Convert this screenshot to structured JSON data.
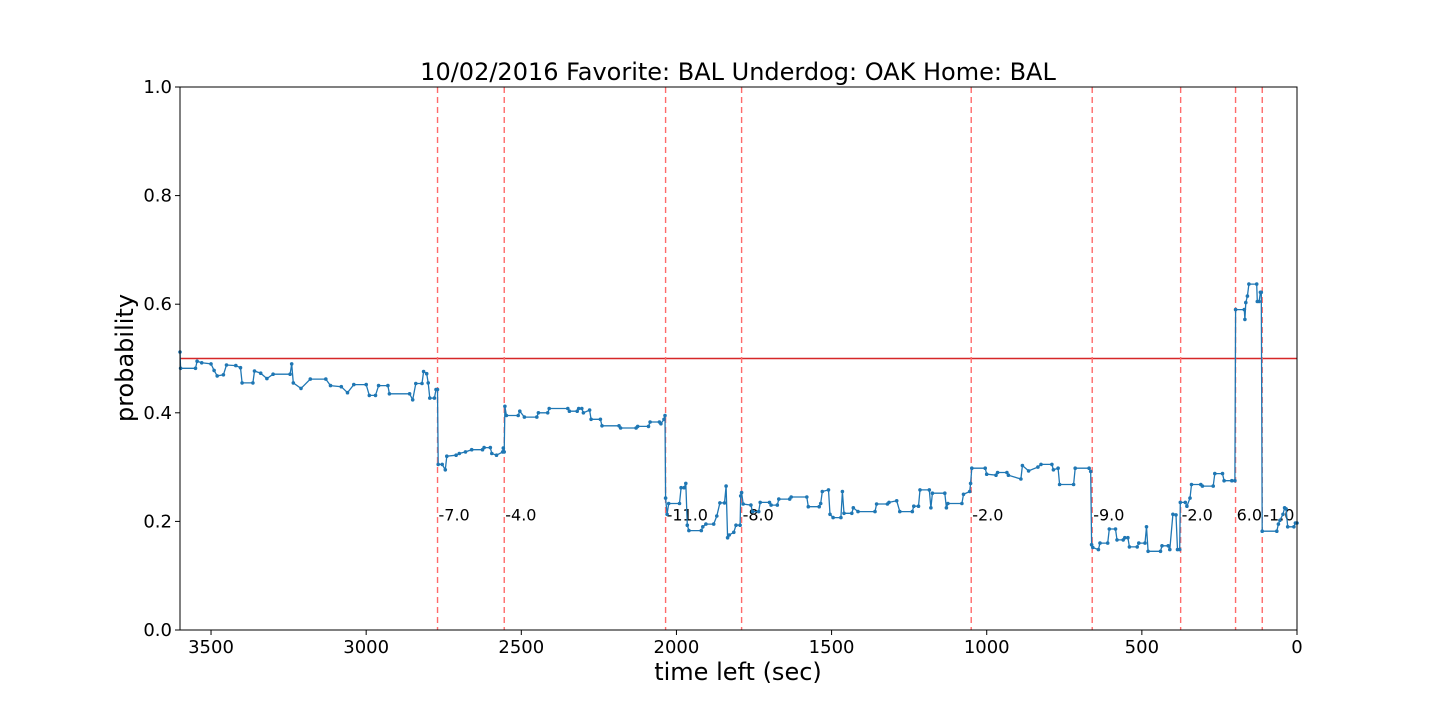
{
  "chart_data": {
    "type": "line",
    "title": "10/02/2016 Favorite: BAL Underdog: OAK Home: BAL",
    "xlabel": "time left (sec)",
    "ylabel": "probability",
    "xlim": [
      3600,
      0
    ],
    "ylim": [
      0.0,
      1.0
    ],
    "x_ticks": [
      3500,
      3000,
      2500,
      2000,
      1500,
      1000,
      500,
      0
    ],
    "y_ticks": [
      0.0,
      0.2,
      0.4,
      0.6,
      0.8,
      1.0
    ],
    "grid": false,
    "line_color": "#1f77b4",
    "reference_line": {
      "y": 0.5,
      "color": "#d62728"
    },
    "event_line_color": "#ff6b6b",
    "events": [
      {
        "x": 2770,
        "label": "-7.0"
      },
      {
        "x": 2555,
        "label": "-4.0"
      },
      {
        "x": 2035,
        "label": "-11.0"
      },
      {
        "x": 1790,
        "label": "-8.0"
      },
      {
        "x": 1050,
        "label": "-2.0"
      },
      {
        "x": 660,
        "label": "-9.0"
      },
      {
        "x": 375,
        "label": "-2.0"
      },
      {
        "x": 198,
        "label": "6.0"
      },
      {
        "x": 112,
        "label": "-1.0"
      }
    ],
    "event_label_y": 0.2,
    "series": [
      {
        "points": [
          [
            3600,
            0.512
          ],
          [
            3598,
            0.482
          ],
          [
            3550,
            0.482
          ],
          [
            3545,
            0.495
          ],
          [
            3530,
            0.492
          ],
          [
            3500,
            0.49
          ],
          [
            3490,
            0.478
          ],
          [
            3480,
            0.468
          ],
          [
            3460,
            0.47
          ],
          [
            3450,
            0.488
          ],
          [
            3420,
            0.487
          ],
          [
            3405,
            0.483
          ],
          [
            3400,
            0.455
          ],
          [
            3365,
            0.455
          ],
          [
            3360,
            0.477
          ],
          [
            3340,
            0.473
          ],
          [
            3320,
            0.463
          ],
          [
            3300,
            0.471
          ],
          [
            3245,
            0.471
          ],
          [
            3240,
            0.49
          ],
          [
            3235,
            0.455
          ],
          [
            3210,
            0.445
          ],
          [
            3180,
            0.462
          ],
          [
            3130,
            0.462
          ],
          [
            3115,
            0.45
          ],
          [
            3080,
            0.448
          ],
          [
            3060,
            0.437
          ],
          [
            3040,
            0.452
          ],
          [
            3000,
            0.452
          ],
          [
            2990,
            0.432
          ],
          [
            2970,
            0.432
          ],
          [
            2960,
            0.45
          ],
          [
            2930,
            0.45
          ],
          [
            2925,
            0.435
          ],
          [
            2860,
            0.435
          ],
          [
            2850,
            0.424
          ],
          [
            2840,
            0.454
          ],
          [
            2820,
            0.454
          ],
          [
            2815,
            0.476
          ],
          [
            2805,
            0.472
          ],
          [
            2800,
            0.455
          ],
          [
            2795,
            0.427
          ],
          [
            2780,
            0.427
          ],
          [
            2775,
            0.443
          ],
          [
            2770,
            0.443
          ],
          [
            2768,
            0.305
          ],
          [
            2755,
            0.305
          ],
          [
            2745,
            0.295
          ],
          [
            2740,
            0.32
          ],
          [
            2710,
            0.322
          ],
          [
            2700,
            0.325
          ],
          [
            2680,
            0.328
          ],
          [
            2660,
            0.332
          ],
          [
            2625,
            0.332
          ],
          [
            2620,
            0.336
          ],
          [
            2600,
            0.336
          ],
          [
            2595,
            0.325
          ],
          [
            2580,
            0.322
          ],
          [
            2560,
            0.328
          ],
          [
            2558,
            0.335
          ],
          [
            2555,
            0.328
          ],
          [
            2553,
            0.412
          ],
          [
            2548,
            0.395
          ],
          [
            2510,
            0.395
          ],
          [
            2505,
            0.403
          ],
          [
            2490,
            0.392
          ],
          [
            2450,
            0.392
          ],
          [
            2445,
            0.4
          ],
          [
            2415,
            0.4
          ],
          [
            2410,
            0.408
          ],
          [
            2350,
            0.408
          ],
          [
            2345,
            0.403
          ],
          [
            2320,
            0.403
          ],
          [
            2315,
            0.408
          ],
          [
            2305,
            0.408
          ],
          [
            2300,
            0.4
          ],
          [
            2280,
            0.405
          ],
          [
            2275,
            0.388
          ],
          [
            2245,
            0.388
          ],
          [
            2240,
            0.376
          ],
          [
            2185,
            0.376
          ],
          [
            2180,
            0.372
          ],
          [
            2130,
            0.372
          ],
          [
            2125,
            0.375
          ],
          [
            2090,
            0.375
          ],
          [
            2085,
            0.383
          ],
          [
            2055,
            0.383
          ],
          [
            2050,
            0.38
          ],
          [
            2040,
            0.388
          ],
          [
            2037,
            0.395
          ],
          [
            2035,
            0.243
          ],
          [
            2030,
            0.213
          ],
          [
            2025,
            0.233
          ],
          [
            1990,
            0.233
          ],
          [
            1985,
            0.262
          ],
          [
            1975,
            0.262
          ],
          [
            1970,
            0.27
          ],
          [
            1965,
            0.193
          ],
          [
            1960,
            0.183
          ],
          [
            1920,
            0.183
          ],
          [
            1915,
            0.19
          ],
          [
            1905,
            0.195
          ],
          [
            1880,
            0.195
          ],
          [
            1870,
            0.21
          ],
          [
            1860,
            0.234
          ],
          [
            1845,
            0.234
          ],
          [
            1840,
            0.265
          ],
          [
            1835,
            0.17
          ],
          [
            1830,
            0.175
          ],
          [
            1815,
            0.18
          ],
          [
            1808,
            0.193
          ],
          [
            1795,
            0.193
          ],
          [
            1793,
            0.247
          ],
          [
            1790,
            0.253
          ],
          [
            1785,
            0.232
          ],
          [
            1760,
            0.23
          ],
          [
            1755,
            0.218
          ],
          [
            1735,
            0.218
          ],
          [
            1730,
            0.235
          ],
          [
            1700,
            0.235
          ],
          [
            1695,
            0.23
          ],
          [
            1675,
            0.23
          ],
          [
            1670,
            0.241
          ],
          [
            1635,
            0.241
          ],
          [
            1630,
            0.245
          ],
          [
            1580,
            0.245
          ],
          [
            1575,
            0.227
          ],
          [
            1540,
            0.227
          ],
          [
            1535,
            0.233
          ],
          [
            1530,
            0.255
          ],
          [
            1510,
            0.258
          ],
          [
            1505,
            0.213
          ],
          [
            1495,
            0.207
          ],
          [
            1470,
            0.207
          ],
          [
            1465,
            0.255
          ],
          [
            1460,
            0.215
          ],
          [
            1435,
            0.215
          ],
          [
            1430,
            0.225
          ],
          [
            1415,
            0.218
          ],
          [
            1360,
            0.218
          ],
          [
            1355,
            0.232
          ],
          [
            1320,
            0.232
          ],
          [
            1315,
            0.235
          ],
          [
            1290,
            0.238
          ],
          [
            1280,
            0.218
          ],
          [
            1240,
            0.218
          ],
          [
            1235,
            0.228
          ],
          [
            1220,
            0.228
          ],
          [
            1215,
            0.258
          ],
          [
            1185,
            0.258
          ],
          [
            1180,
            0.225
          ],
          [
            1175,
            0.252
          ],
          [
            1135,
            0.252
          ],
          [
            1130,
            0.225
          ],
          [
            1125,
            0.233
          ],
          [
            1080,
            0.233
          ],
          [
            1075,
            0.25
          ],
          [
            1055,
            0.255
          ],
          [
            1052,
            0.27
          ],
          [
            1048,
            0.298
          ],
          [
            1005,
            0.298
          ],
          [
            1000,
            0.287
          ],
          [
            970,
            0.285
          ],
          [
            965,
            0.29
          ],
          [
            935,
            0.29
          ],
          [
            930,
            0.285
          ],
          [
            890,
            0.278
          ],
          [
            885,
            0.303
          ],
          [
            865,
            0.293
          ],
          [
            835,
            0.3
          ],
          [
            825,
            0.305
          ],
          [
            790,
            0.305
          ],
          [
            785,
            0.295
          ],
          [
            770,
            0.298
          ],
          [
            765,
            0.268
          ],
          [
            720,
            0.268
          ],
          [
            715,
            0.298
          ],
          [
            670,
            0.298
          ],
          [
            665,
            0.292
          ],
          [
            662,
            0.157
          ],
          [
            658,
            0.152
          ],
          [
            640,
            0.148
          ],
          [
            635,
            0.16
          ],
          [
            610,
            0.16
          ],
          [
            605,
            0.186
          ],
          [
            585,
            0.186
          ],
          [
            580,
            0.166
          ],
          [
            560,
            0.166
          ],
          [
            555,
            0.17
          ],
          [
            545,
            0.17
          ],
          [
            540,
            0.153
          ],
          [
            515,
            0.153
          ],
          [
            510,
            0.16
          ],
          [
            490,
            0.16
          ],
          [
            485,
            0.19
          ],
          [
            480,
            0.145
          ],
          [
            440,
            0.145
          ],
          [
            435,
            0.155
          ],
          [
            415,
            0.155
          ],
          [
            410,
            0.148
          ],
          [
            400,
            0.213
          ],
          [
            390,
            0.212
          ],
          [
            385,
            0.148
          ],
          [
            378,
            0.148
          ],
          [
            376,
            0.235
          ],
          [
            360,
            0.235
          ],
          [
            355,
            0.228
          ],
          [
            345,
            0.243
          ],
          [
            340,
            0.268
          ],
          [
            310,
            0.268
          ],
          [
            305,
            0.265
          ],
          [
            270,
            0.265
          ],
          [
            265,
            0.288
          ],
          [
            240,
            0.288
          ],
          [
            235,
            0.275
          ],
          [
            210,
            0.275
          ],
          [
            200,
            0.275
          ],
          [
            198,
            0.59
          ],
          [
            170,
            0.59
          ],
          [
            168,
            0.572
          ],
          [
            165,
            0.603
          ],
          [
            160,
            0.615
          ],
          [
            155,
            0.637
          ],
          [
            130,
            0.637
          ],
          [
            128,
            0.605
          ],
          [
            122,
            0.605
          ],
          [
            118,
            0.622
          ],
          [
            115,
            0.622
          ],
          [
            112,
            0.182
          ],
          [
            65,
            0.182
          ],
          [
            60,
            0.195
          ],
          [
            55,
            0.202
          ],
          [
            45,
            0.213
          ],
          [
            40,
            0.225
          ],
          [
            35,
            0.223
          ],
          [
            30,
            0.19
          ],
          [
            10,
            0.19
          ],
          [
            5,
            0.197
          ],
          [
            0,
            0.197
          ]
        ]
      }
    ]
  }
}
